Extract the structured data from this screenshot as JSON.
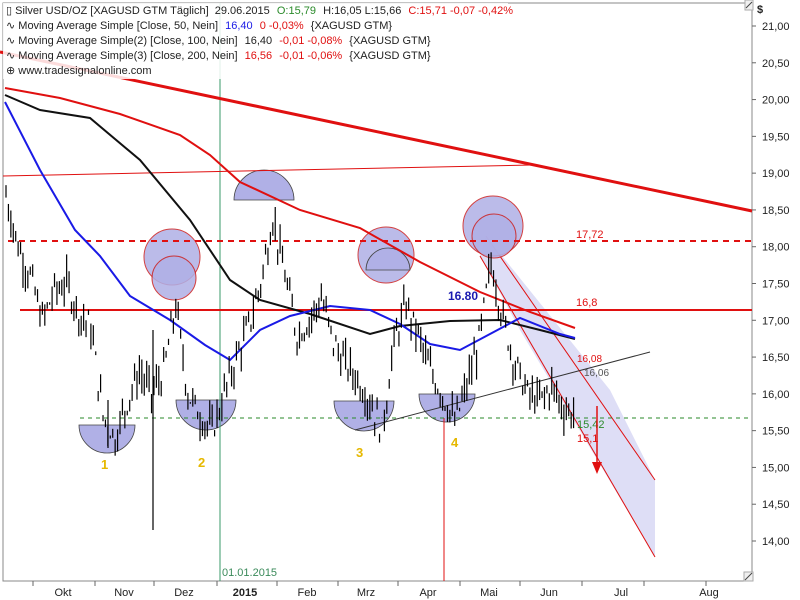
{
  "legend": {
    "line1_title": "Silver USD/OZ [XAGUSD GTM  Täglich]",
    "line1_date": "29.06.2015",
    "line1_open": "O:15,79",
    "line1_hlc": "H:16,05  L:15,66",
    "line1_close": "C:15,71 -0,07 -0,42%",
    "ma1_label": "Moving Average Simple [Close, 50, Nein]",
    "ma1_value": "16,40",
    "ma1_change": "0 -0,03%",
    "ma1_symbol": "{XAGUSD GTM}",
    "ma2_label": "Moving Average Simple(2) [Close, 100, Nein]",
    "ma2_value": "16,40",
    "ma2_change": "-0,01 -0,08%",
    "ma2_symbol": "{XAGUSD GTM}",
    "ma3_label": "Moving Average Simple(3) [Close, 200, Nein]",
    "ma3_value": "16,56",
    "ma3_change": "-0,01 -0,06%",
    "ma3_symbol": "{XAGUSD GTM}",
    "source": "www.tradesignalonline.com"
  },
  "colors": {
    "price": "#000000",
    "ma50": "#1a1ae6",
    "ma100": "#111111",
    "ma200": "#e01010",
    "resistance": "#e01010",
    "support": "#2a8a2a",
    "channel_fill": "#c8c8f0",
    "marker_fill": "#b0b0e6",
    "marker_stroke": "#cc2020",
    "vline": "#3a9a6a",
    "label_yellow": "#e6b800",
    "label_blue": "#1a1ab0"
  },
  "axis": {
    "currency": "$",
    "y_ticks": [
      "21,00",
      "20,50",
      "20,00",
      "19,50",
      "19,00",
      "18,50",
      "18,00",
      "17,50",
      "17,00",
      "16,50",
      "16,00",
      "15,50",
      "15,00",
      "14,50",
      "14,00"
    ],
    "x_ticks": [
      "Okt",
      "Nov",
      "Dez",
      "2015",
      "Feb",
      "Mrz",
      "Apr",
      "Mai",
      "Jun",
      "Jul",
      "Aug"
    ]
  },
  "annotations": {
    "r1": "17,72",
    "r2": "16,8",
    "ma_label": "16.80",
    "v1": "16,08",
    "v2": "16,06",
    "s1": "15,42",
    "s2": "15,1",
    "date_marker": "01.01.2015",
    "n1": "1",
    "n2": "2",
    "n3": "3",
    "n4": "4"
  },
  "chart_data": {
    "type": "line",
    "symbol": "XAGUSD",
    "ylim": [
      13.6,
      21.5
    ],
    "y_scale": "linear",
    "x_labels": [
      "Okt",
      "Nov",
      "Dez",
      "2015",
      "Feb",
      "Mrz",
      "Apr",
      "Mai",
      "Jun",
      "Jul",
      "Aug"
    ],
    "series": [
      {
        "name": "Silver USD/OZ",
        "values": [
          18.7,
          18.0,
          17.6,
          17.0,
          17.4,
          17.5,
          17.1,
          16.9,
          15.7,
          15.4,
          15.9,
          16.3,
          16.0,
          16.3,
          17.2,
          16.0,
          15.7,
          15.5,
          16.0,
          16.5,
          16.9,
          17.5,
          18.4,
          17.6,
          16.8,
          17.0,
          17.3,
          16.7,
          16.4,
          16.2,
          15.9,
          15.5,
          16.7,
          17.2,
          16.8,
          16.3,
          16.0,
          15.6,
          16.1,
          16.7,
          17.8,
          17.0,
          16.4,
          16.0,
          15.9,
          16.1,
          15.8,
          15.71
        ]
      },
      {
        "name": "Moving Average Simple [Close, 50, Nein]",
        "values": [
          19.9,
          19.0,
          18.0,
          17.2,
          16.6,
          16.2,
          16.3,
          16.6,
          16.5,
          16.2,
          16.2,
          16.4,
          16.7,
          16.8,
          16.8,
          16.8,
          16.7,
          16.6,
          16.6,
          16.5,
          16.4,
          16.3,
          16.4,
          16.5,
          16.4,
          16.4
        ]
      },
      {
        "name": "Moving Average Simple(2) [Close, 100, Nein]",
        "values": [
          19.8,
          19.4,
          18.7,
          18.0,
          17.4,
          17.0,
          16.9,
          16.8,
          16.7,
          16.5,
          16.4,
          16.6,
          16.7,
          16.6,
          16.7,
          16.75,
          16.7,
          16.6,
          16.5,
          16.4
        ]
      },
      {
        "name": "Moving Average Simple(3) [Close, 200, Nein]",
        "values": [
          19.9,
          19.8,
          19.6,
          19.3,
          19.0,
          18.7,
          18.4,
          18.2,
          17.9,
          17.6,
          17.3,
          17.0,
          16.56
        ]
      }
    ],
    "levels": [
      17.72,
      16.8,
      15.42,
      15.1
    ],
    "grid": false,
    "legend_position": "top-left"
  }
}
